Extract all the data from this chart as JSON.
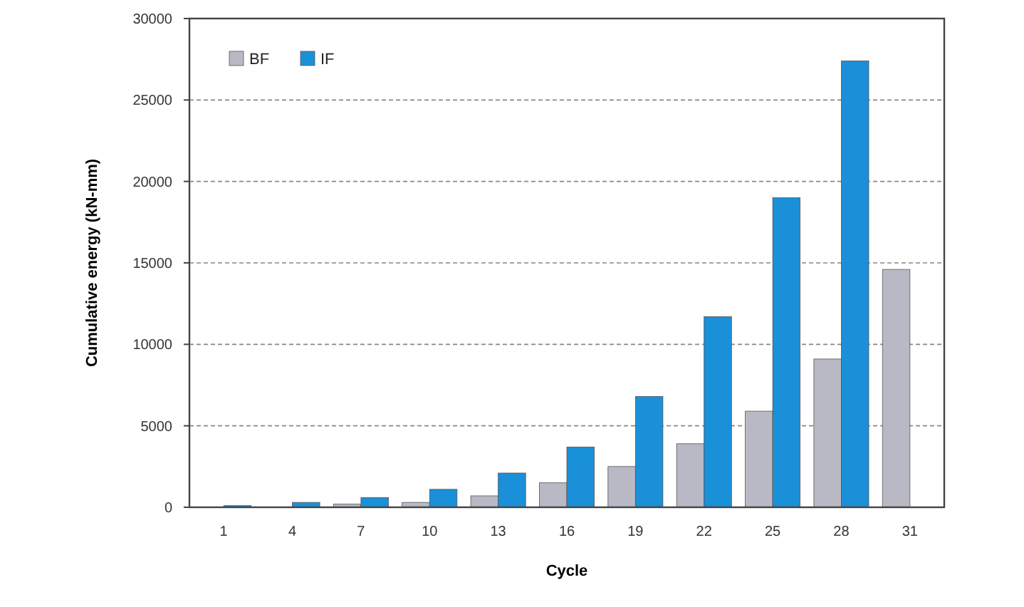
{
  "chart_data": {
    "type": "bar",
    "xlabel": "Cycle",
    "ylabel": "Cumulative energy (kN-mm)",
    "categories": [
      "1",
      "4",
      "7",
      "10",
      "13",
      "16",
      "19",
      "22",
      "25",
      "28",
      "31"
    ],
    "series": [
      {
        "name": "BF",
        "color": "#b8b9c4",
        "values": [
          null,
          null,
          200,
          300,
          700,
          1500,
          2500,
          3900,
          5900,
          9100,
          14600
        ]
      },
      {
        "name": "IF",
        "color": "#1a90d8",
        "values": [
          100,
          300,
          600,
          1100,
          2100,
          3700,
          6800,
          11700,
          19000,
          27400,
          null
        ]
      }
    ],
    "ylim": [
      0,
      30000
    ],
    "yticks": [
      0,
      5000,
      10000,
      15000,
      20000,
      25000,
      30000
    ],
    "grid": "y",
    "legend": "top left"
  }
}
